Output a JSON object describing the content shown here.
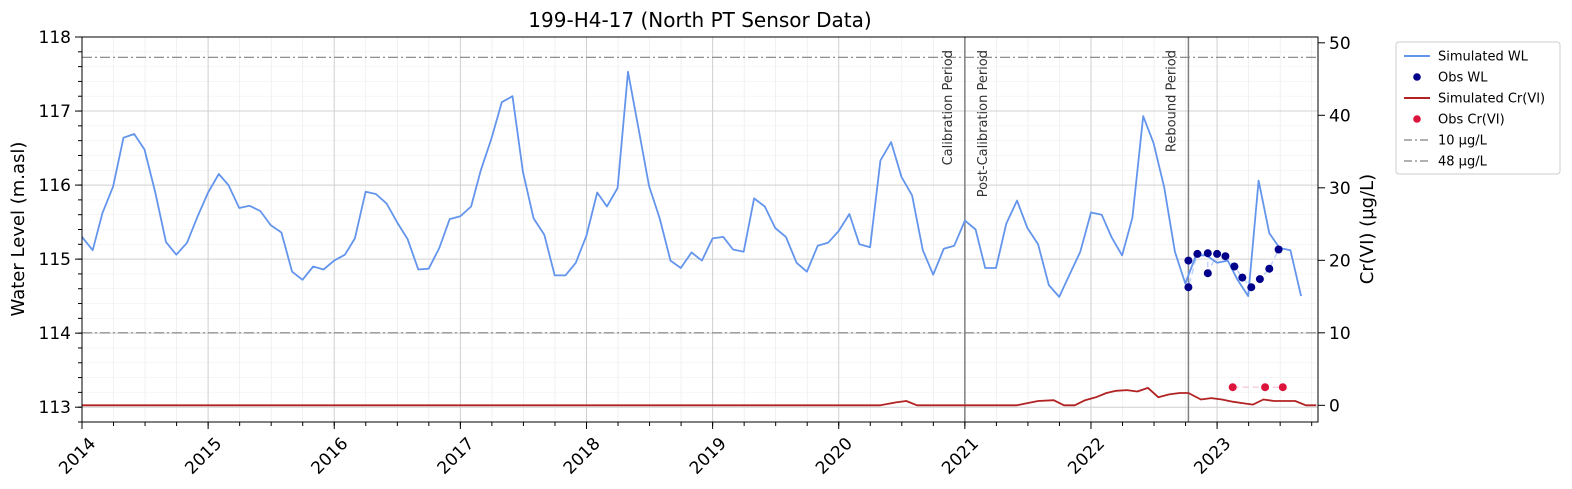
{
  "chart_data": {
    "type": "line",
    "title": "199-H4-17 (North PT Sensor Data)",
    "ylabel_left": "Water Level (m.asl)",
    "ylabel_right": "Cr(VI) (µg/L)",
    "xlim": [
      "2014-01-01",
      "2023-10-20"
    ],
    "ylim_left": [
      112.8,
      118.0
    ],
    "ylim_right": [
      -2.3,
      50.8
    ],
    "x_ticks": [
      2014,
      2015,
      2016,
      2017,
      2018,
      2019,
      2020,
      2021,
      2022,
      2023
    ],
    "x_tick_labels": [
      "2014",
      "2015",
      "2016",
      "2017",
      "2018",
      "2019",
      "2020",
      "2021",
      "2022",
      "2023"
    ],
    "y_ticks_left": [
      113,
      114,
      115,
      116,
      117,
      118
    ],
    "y_tick_labels_left": [
      "113",
      "114",
      "115",
      "116",
      "117",
      "118"
    ],
    "y_ticks_right": [
      0,
      10,
      20,
      30,
      40,
      50
    ],
    "y_tick_labels_right": [
      "0",
      "10",
      "20",
      "30",
      "40",
      "50"
    ],
    "grid": true,
    "legend_position": "outside-right",
    "colors": {
      "sim_wl": "#6495ED",
      "obs_wl": "#00008B",
      "sim_cr": "#B22222",
      "obs_cr": "#DC143C",
      "threshold": "#808080",
      "period_line": "#808080"
    },
    "thresholds": [
      {
        "name": "10 µg/L",
        "value": 10
      },
      {
        "name": "48 µg/L",
        "value": 48
      }
    ],
    "periods": [
      {
        "label": "Calibration Period",
        "side": "before",
        "date": "2021-01-01"
      },
      {
        "label": "Post-Calibration Period",
        "side": "after",
        "date": "2021-01-01"
      },
      {
        "label": "Rebound Period",
        "side": "before",
        "date": "2022-10-10"
      }
    ],
    "legend": [
      {
        "label": "Simulated WL",
        "kind": "line",
        "series": "sim_wl"
      },
      {
        "label": "Obs WL",
        "kind": "dot",
        "series": "obs_wl"
      },
      {
        "label": "Simulated Cr(VI)",
        "kind": "line",
        "series": "sim_cr"
      },
      {
        "label": "Obs Cr(VI)",
        "kind": "dot",
        "series": "obs_cr"
      },
      {
        "label": "10 µg/L",
        "kind": "dashdot",
        "series": "threshold"
      },
      {
        "label": "48 µg/L",
        "kind": "dashdot",
        "series": "threshold"
      }
    ],
    "series": [
      {
        "name": "Simulated WL",
        "axis": "left",
        "x": [
          "2014-01-01",
          "2014-02-01",
          "2014-03-01",
          "2014-04-01",
          "2014-05-01",
          "2014-06-01",
          "2014-07-01",
          "2014-08-01",
          "2014-09-01",
          "2014-10-01",
          "2014-11-01",
          "2014-12-01",
          "2015-01-01",
          "2015-02-01",
          "2015-03-01",
          "2015-04-01",
          "2015-05-01",
          "2015-06-01",
          "2015-07-01",
          "2015-08-01",
          "2015-09-01",
          "2015-10-01",
          "2015-11-01",
          "2015-12-01",
          "2016-01-01",
          "2016-02-01",
          "2016-03-01",
          "2016-04-01",
          "2016-05-01",
          "2016-06-01",
          "2016-07-01",
          "2016-08-01",
          "2016-09-01",
          "2016-10-01",
          "2016-11-01",
          "2016-12-01",
          "2017-01-01",
          "2017-02-01",
          "2017-03-01",
          "2017-04-01",
          "2017-05-01",
          "2017-06-01",
          "2017-07-01",
          "2017-08-01",
          "2017-09-01",
          "2017-10-01",
          "2017-11-01",
          "2017-12-01",
          "2018-01-01",
          "2018-02-01",
          "2018-03-01",
          "2018-04-01",
          "2018-05-01",
          "2018-06-01",
          "2018-07-01",
          "2018-08-01",
          "2018-09-01",
          "2018-10-01",
          "2018-11-01",
          "2018-12-01",
          "2019-01-01",
          "2019-02-01",
          "2019-03-01",
          "2019-04-01",
          "2019-05-01",
          "2019-06-01",
          "2019-07-01",
          "2019-08-01",
          "2019-09-01",
          "2019-10-01",
          "2019-11-01",
          "2019-12-01",
          "2020-01-01",
          "2020-02-01",
          "2020-03-01",
          "2020-04-01",
          "2020-05-01",
          "2020-06-01",
          "2020-07-01",
          "2020-08-01",
          "2020-09-01",
          "2020-10-01",
          "2020-11-01",
          "2020-12-01",
          "2021-01-01",
          "2021-02-01",
          "2021-03-01",
          "2021-04-01",
          "2021-05-01",
          "2021-06-01",
          "2021-07-01",
          "2021-08-01",
          "2021-09-01",
          "2021-10-01",
          "2021-11-01",
          "2021-12-01",
          "2022-01-01",
          "2022-02-01",
          "2022-03-01",
          "2022-04-01",
          "2022-05-01",
          "2022-06-01",
          "2022-07-01",
          "2022-08-01",
          "2022-09-01",
          "2022-10-01",
          "2022-11-01",
          "2022-12-01",
          "2023-01-01",
          "2023-02-01",
          "2023-03-01",
          "2023-04-01",
          "2023-05-01",
          "2023-06-01",
          "2023-07-01",
          "2023-08-01",
          "2023-09-01"
        ],
        "y": [
          115.3,
          115.12,
          115.62,
          115.98,
          116.64,
          116.69,
          116.48,
          115.9,
          115.23,
          115.06,
          115.22,
          115.57,
          115.9,
          116.15,
          116.0,
          115.69,
          115.72,
          115.65,
          115.46,
          115.36,
          114.83,
          114.72,
          114.9,
          114.86,
          114.98,
          115.06,
          115.28,
          115.91,
          115.88,
          115.75,
          115.5,
          115.27,
          114.86,
          114.87,
          115.15,
          115.54,
          115.58,
          115.71,
          116.2,
          116.63,
          117.12,
          117.2,
          116.18,
          115.55,
          115.33,
          114.78,
          114.78,
          114.95,
          115.32,
          115.9,
          115.71,
          115.96,
          117.53,
          116.75,
          115.99,
          115.55,
          114.98,
          114.88,
          115.09,
          114.98,
          115.28,
          115.3,
          115.13,
          115.1,
          115.82,
          115.71,
          115.42,
          115.3,
          114.95,
          114.83,
          115.18,
          115.22,
          115.38,
          115.61,
          115.2,
          115.16,
          116.33,
          116.58,
          116.11,
          115.86,
          115.12,
          114.79,
          115.14,
          115.18,
          115.52,
          115.4,
          114.88,
          114.88,
          115.48,
          115.79,
          115.42,
          115.2,
          114.65,
          114.49,
          114.8,
          115.1,
          115.63,
          115.6,
          115.3,
          115.05,
          115.56,
          116.93,
          116.57,
          115.97,
          115.1,
          114.67,
          115.05,
          115.05,
          114.95,
          114.98,
          114.72,
          114.5,
          116.06,
          115.35,
          115.15,
          115.12,
          114.5
        ]
      },
      {
        "name": "Obs WL",
        "axis": "left",
        "x": [
          "2022-10-10",
          "2022-10-10",
          "2022-11-05",
          "2022-12-05",
          "2022-12-05",
          "2023-01-01",
          "2023-01-25",
          "2023-02-20",
          "2023-03-15",
          "2023-04-10",
          "2023-05-05",
          "2023-06-01",
          "2023-06-28"
        ],
        "y": [
          114.98,
          114.62,
          115.07,
          115.08,
          114.81,
          115.07,
          115.04,
          114.9,
          114.75,
          114.62,
          114.73,
          114.87,
          115.13
        ]
      },
      {
        "name": "Simulated Cr(VI)",
        "axis": "right",
        "x": [
          "2014-01-01",
          "2020-05-01",
          "2020-06-15",
          "2020-07-15",
          "2020-08-15",
          "2021-01-01",
          "2021-06-01",
          "2021-08-01",
          "2021-09-15",
          "2021-10-15",
          "2021-11-15",
          "2021-12-15",
          "2022-01-15",
          "2022-02-15",
          "2022-03-15",
          "2022-04-15",
          "2022-05-15",
          "2022-06-15",
          "2022-07-15",
          "2022-08-15",
          "2022-09-15",
          "2022-10-10",
          "2022-11-15",
          "2022-12-15",
          "2023-01-15",
          "2023-02-15",
          "2023-03-15",
          "2023-04-15",
          "2023-05-15",
          "2023-06-15",
          "2023-07-15",
          "2023-08-15",
          "2023-09-15",
          "2023-10-15"
        ],
        "y": [
          0.0,
          0.0,
          0.4,
          0.6,
          0.0,
          0.0,
          0.0,
          0.6,
          0.7,
          0.0,
          0.0,
          0.7,
          1.1,
          1.7,
          2.0,
          2.1,
          1.9,
          2.4,
          1.1,
          1.5,
          1.7,
          1.7,
          0.8,
          1.0,
          0.8,
          0.5,
          0.3,
          0.1,
          0.8,
          0.6,
          0.6,
          0.6,
          0.0,
          0.0
        ]
      },
      {
        "name": "Obs Cr(VI)",
        "axis": "right",
        "x": [
          "2023-02-15",
          "2023-05-20",
          "2023-07-10"
        ],
        "y": [
          2.5,
          2.5,
          2.5
        ]
      }
    ]
  }
}
